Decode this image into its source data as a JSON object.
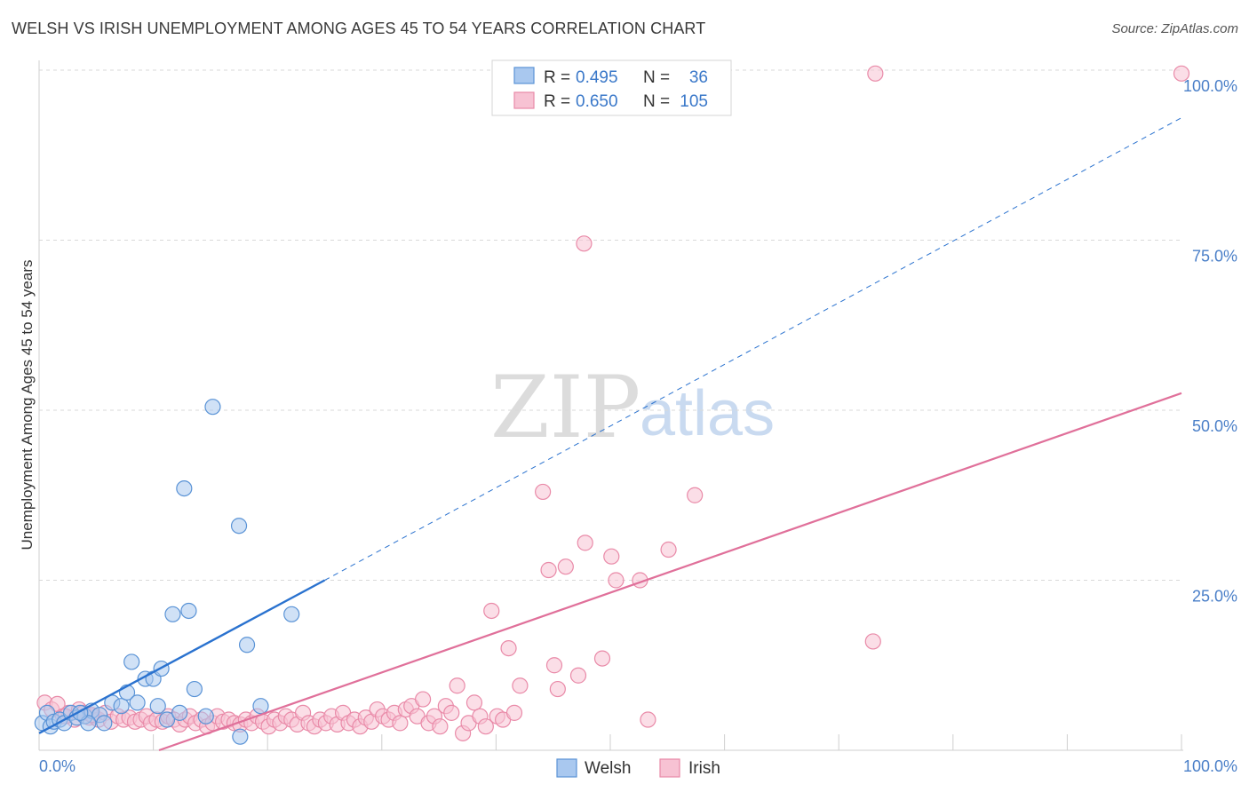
{
  "title": "WELSH VS IRISH UNEMPLOYMENT AMONG AGES 45 TO 54 YEARS CORRELATION CHART",
  "source": "Source: ZipAtlas.com",
  "watermark": {
    "zip": "ZIP",
    "atlas": "atlas"
  },
  "colors": {
    "welsh_fill": "#a9c8ef",
    "welsh_stroke": "#5a93d6",
    "welsh_line": "#2a72cf",
    "irish_fill": "#f7c2d3",
    "irish_stroke": "#e98aa8",
    "irish_line": "#e0709a",
    "grid": "#d9d9d9",
    "tick": "#4a7fc8"
  },
  "legend": {
    "rows": [
      {
        "r_label": "R =",
        "r_value": "0.495",
        "n_label": "N =",
        "n_value": "36"
      },
      {
        "r_label": "R =",
        "r_value": "0.650",
        "n_label": "N =",
        "n_value": "105"
      }
    ]
  },
  "chart_data": {
    "type": "scatter",
    "title": "WELSH VS IRISH UNEMPLOYMENT AMONG AGES 45 TO 54 YEARS CORRELATION CHART",
    "xlabel": "",
    "ylabel": "Unemployment Among Ages 45 to 54 years",
    "xlim": [
      0,
      100
    ],
    "ylim": [
      0,
      100
    ],
    "x_tick_labels": [
      "0.0%",
      "100.0%"
    ],
    "y_tick_labels": [
      "100.0%",
      "75.0%",
      "50.0%",
      "25.0%"
    ],
    "y_tick_values": [
      100,
      75,
      50,
      25
    ],
    "grid": true,
    "legend_position": "bottom-center",
    "series": [
      {
        "name": "Welsh",
        "r": 0.495,
        "n": 36,
        "trend": {
          "x0": 0,
          "y0": 2.5,
          "x1": 25,
          "y1": 25,
          "x_dash_end": 100,
          "y_dash_end": 93
        },
        "points": [
          [
            0.3,
            4.0
          ],
          [
            0.7,
            5.5
          ],
          [
            1.0,
            3.5
          ],
          [
            1.3,
            4.2
          ],
          [
            1.8,
            4.5
          ],
          [
            2.2,
            4.0
          ],
          [
            2.8,
            5.5
          ],
          [
            3.3,
            4.8
          ],
          [
            4.0,
            5.0
          ],
          [
            4.6,
            5.8
          ],
          [
            5.3,
            5.2
          ],
          [
            5.7,
            4.0
          ],
          [
            6.4,
            7.0
          ],
          [
            7.2,
            6.5
          ],
          [
            7.7,
            8.5
          ],
          [
            8.1,
            13.0
          ],
          [
            8.6,
            7.0
          ],
          [
            9.3,
            10.5
          ],
          [
            10.0,
            10.5
          ],
          [
            10.4,
            6.5
          ],
          [
            10.7,
            12.0
          ],
          [
            11.2,
            4.5
          ],
          [
            11.7,
            20.0
          ],
          [
            12.3,
            5.5
          ],
          [
            12.7,
            38.5
          ],
          [
            13.1,
            20.5
          ],
          [
            13.6,
            9.0
          ],
          [
            14.6,
            5.0
          ],
          [
            15.2,
            50.5
          ],
          [
            17.5,
            33.0
          ],
          [
            18.2,
            15.5
          ],
          [
            17.6,
            2.0
          ],
          [
            19.4,
            6.5
          ],
          [
            22.1,
            20.0
          ],
          [
            4.3,
            4.0
          ],
          [
            3.6,
            5.5
          ]
        ]
      },
      {
        "name": "Irish",
        "r": 0.65,
        "n": 105,
        "trend": {
          "x0": 10.5,
          "y0": 0,
          "x1": 100,
          "y1": 52.5
        },
        "points": [
          [
            0.5,
            7.0
          ],
          [
            1.1,
            6.0
          ],
          [
            1.6,
            6.8
          ],
          [
            2.1,
            5.0
          ],
          [
            2.6,
            5.5
          ],
          [
            3.1,
            4.5
          ],
          [
            3.5,
            6.0
          ],
          [
            3.9,
            5.5
          ],
          [
            4.4,
            4.8
          ],
          [
            4.8,
            5.0
          ],
          [
            5.2,
            4.5
          ],
          [
            5.8,
            5.5
          ],
          [
            6.3,
            4.2
          ],
          [
            6.9,
            5.0
          ],
          [
            7.4,
            4.5
          ],
          [
            7.9,
            4.8
          ],
          [
            8.4,
            4.2
          ],
          [
            8.9,
            4.5
          ],
          [
            9.4,
            5.0
          ],
          [
            9.8,
            4.0
          ],
          [
            10.3,
            4.5
          ],
          [
            10.8,
            4.2
          ],
          [
            11.3,
            5.0
          ],
          [
            11.8,
            4.5
          ],
          [
            12.3,
            3.8
          ],
          [
            12.8,
            4.5
          ],
          [
            13.2,
            5.0
          ],
          [
            13.7,
            4.0
          ],
          [
            14.2,
            4.5
          ],
          [
            14.7,
            3.5
          ],
          [
            15.2,
            4.0
          ],
          [
            15.6,
            5.0
          ],
          [
            16.1,
            4.2
          ],
          [
            16.6,
            4.5
          ],
          [
            17.1,
            4.0
          ],
          [
            17.6,
            3.8
          ],
          [
            18.1,
            4.5
          ],
          [
            18.6,
            4.0
          ],
          [
            19.1,
            5.0
          ],
          [
            19.6,
            4.2
          ],
          [
            20.1,
            3.5
          ],
          [
            20.6,
            4.5
          ],
          [
            21.1,
            4.0
          ],
          [
            21.6,
            5.0
          ],
          [
            22.1,
            4.5
          ],
          [
            22.6,
            3.8
          ],
          [
            23.1,
            5.5
          ],
          [
            23.6,
            4.0
          ],
          [
            24.1,
            3.5
          ],
          [
            24.6,
            4.5
          ],
          [
            25.1,
            4.0
          ],
          [
            25.6,
            5.0
          ],
          [
            26.1,
            3.8
          ],
          [
            26.6,
            5.5
          ],
          [
            27.1,
            4.0
          ],
          [
            27.6,
            4.5
          ],
          [
            28.1,
            3.5
          ],
          [
            28.6,
            4.8
          ],
          [
            29.1,
            4.2
          ],
          [
            29.6,
            6.0
          ],
          [
            30.1,
            5.0
          ],
          [
            30.6,
            4.5
          ],
          [
            31.1,
            5.5
          ],
          [
            31.6,
            4.0
          ],
          [
            32.1,
            6.0
          ],
          [
            32.6,
            6.5
          ],
          [
            33.1,
            5.0
          ],
          [
            33.6,
            7.5
          ],
          [
            34.1,
            4.0
          ],
          [
            34.6,
            5.0
          ],
          [
            35.1,
            3.5
          ],
          [
            35.6,
            6.5
          ],
          [
            36.1,
            5.5
          ],
          [
            36.6,
            9.5
          ],
          [
            37.1,
            2.5
          ],
          [
            37.6,
            4.0
          ],
          [
            38.1,
            7.0
          ],
          [
            38.6,
            5.0
          ],
          [
            39.1,
            3.5
          ],
          [
            39.6,
            20.5
          ],
          [
            40.1,
            5.0
          ],
          [
            40.6,
            4.5
          ],
          [
            41.1,
            15.0
          ],
          [
            41.6,
            5.5
          ],
          [
            42.1,
            9.5
          ],
          [
            44.1,
            38.0
          ],
          [
            44.6,
            26.5
          ],
          [
            45.1,
            12.5
          ],
          [
            45.4,
            9.0
          ],
          [
            46.1,
            27.0
          ],
          [
            47.2,
            11.0
          ],
          [
            47.7,
            74.5
          ],
          [
            47.8,
            30.5
          ],
          [
            49.3,
            13.5
          ],
          [
            50.1,
            28.5
          ],
          [
            50.5,
            25.0
          ],
          [
            52.6,
            25.0
          ],
          [
            53.3,
            4.5
          ],
          [
            55.1,
            29.5
          ],
          [
            57.4,
            37.5
          ],
          [
            73.0,
            16.0
          ],
          [
            73.2,
            99.5
          ],
          [
            100.0,
            99.5
          ],
          [
            4.6,
            5.2
          ],
          [
            2.3,
            5.0
          ]
        ]
      }
    ]
  },
  "bottom_legend": [
    {
      "label": "Welsh"
    },
    {
      "label": "Irish"
    }
  ]
}
